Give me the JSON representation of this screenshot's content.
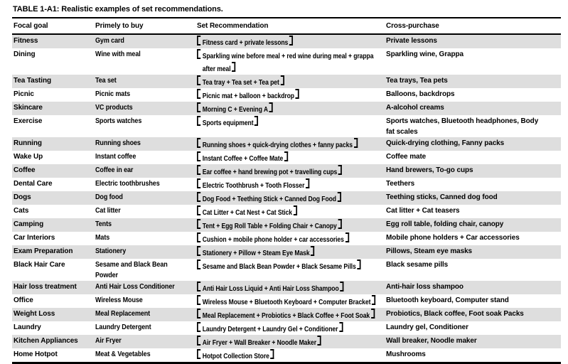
{
  "caption": "TABLE 1-A1: Realistic examples of set recommendations.",
  "colors": {
    "row_shade": "#dedede",
    "border": "#000000",
    "text": "#000000",
    "background": "#ffffff"
  },
  "icons": {
    "set_bracket_left": "black-lenticular-left-bracket 【",
    "set_bracket_right": "black-lenticular-right-bracket 】"
  },
  "table": {
    "columns": [
      "Focal goal",
      "Primely to buy",
      "Set Recommendation",
      "Cross-purchase"
    ],
    "rows": [
      {
        "focal_goal": "Fitness",
        "primely_to_buy": "Gym card",
        "set_recommendation": "Fitness card + private lessons",
        "cross_purchase": "Private lessons"
      },
      {
        "focal_goal": "Dining",
        "primely_to_buy": "Wine with meal",
        "set_recommendation": "Sparkling wine before meal + red wine during meal + grappa after meal",
        "cross_purchase": "Sparkling wine, Grappa"
      },
      {
        "focal_goal": "Tea Tasting",
        "primely_to_buy": "Tea set",
        "set_recommendation": "Tea tray + Tea set + Tea pet",
        "cross_purchase": "Tea trays, Tea pets"
      },
      {
        "focal_goal": "Picnic",
        "primely_to_buy": "Picnic mats",
        "set_recommendation": "Picnic mat + balloon + backdrop",
        "cross_purchase": "Balloons, backdrops"
      },
      {
        "focal_goal": "Skincare",
        "primely_to_buy": "VC products",
        "set_recommendation": "Morning C + Evening A",
        "cross_purchase": "A-alcohol creams"
      },
      {
        "focal_goal": "Exercise",
        "primely_to_buy": "Sports watches",
        "set_recommendation": "Sports equipment",
        "cross_purchase": "Sports watches, Bluetooth headphones, Body fat scales"
      },
      {
        "focal_goal": "Running",
        "primely_to_buy": "Running shoes",
        "set_recommendation": "Running shoes + quick-drying clothes + fanny packs",
        "cross_purchase": "Quick-drying clothing, Fanny packs"
      },
      {
        "focal_goal": "Wake Up",
        "primely_to_buy": "Instant coffee",
        "set_recommendation": "Instant Coffee + Coffee Mate",
        "cross_purchase": "Coffee mate"
      },
      {
        "focal_goal": "Coffee",
        "primely_to_buy": "Coffee in ear",
        "set_recommendation": "Ear coffee + hand brewing pot + travelling cups",
        "cross_purchase": "Hand brewers, To-go cups"
      },
      {
        "focal_goal": "Dental Care",
        "primely_to_buy": "Electric toothbrushes",
        "set_recommendation": "Electric Toothbrush + Tooth Flosser",
        "cross_purchase": "Teethers"
      },
      {
        "focal_goal": "Dogs",
        "primely_to_buy": "Dog food",
        "set_recommendation": "Dog Food + Teething Stick + Canned Dog Food",
        "cross_purchase": "Teething sticks, Canned dog food"
      },
      {
        "focal_goal": "Cats",
        "primely_to_buy": "Cat litter",
        "set_recommendation": "Cat Litter + Cat Nest + Cat Stick",
        "cross_purchase": "Cat litter + Cat teasers"
      },
      {
        "focal_goal": "Camping",
        "primely_to_buy": "Tents",
        "set_recommendation": "Tent + Egg Roll Table + Folding Chair + Canopy",
        "cross_purchase": "Egg roll table, folding chair, canopy"
      },
      {
        "focal_goal": "Car Interiors",
        "primely_to_buy": "Mats",
        "set_recommendation": "Cushion + mobile phone holder + car accessories",
        "cross_purchase": "Mobile phone holders + Car accessories"
      },
      {
        "focal_goal": "Exam Preparation",
        "primely_to_buy": "Stationery",
        "set_recommendation": "Stationery + Pillow + Steam Eye Mask",
        "cross_purchase": "Pillows, Steam eye masks"
      },
      {
        "focal_goal": "Black Hair Care",
        "primely_to_buy": "Sesame and Black Bean Powder",
        "set_recommendation": "Sesame and Black Bean Powder + Black Sesame Pills",
        "cross_purchase": "Black sesame pills"
      },
      {
        "focal_goal": "Hair loss treatment",
        "primely_to_buy": "Anti Hair Loss Conditioner",
        "set_recommendation": "Anti Hair Loss Liquid + Anti Hair Loss Shampoo",
        "cross_purchase": "Anti-hair loss shampoo"
      },
      {
        "focal_goal": "Office",
        "primely_to_buy": "Wireless Mouse",
        "set_recommendation": "Wireless Mouse + Bluetooth Keyboard + Computer Bracket",
        "cross_purchase": "Bluetooth keyboard, Computer stand"
      },
      {
        "focal_goal": "Weight Loss",
        "primely_to_buy": "Meal Replacement",
        "set_recommendation": "Meal Replacement + Probiotics + Black Coffee + Foot Soak",
        "cross_purchase": "Probiotics, Black coffee, Foot soak Packs"
      },
      {
        "focal_goal": "Laundry",
        "primely_to_buy": "Laundry Detergent",
        "set_recommendation": "Laundry Detergent + Laundry Gel + Conditioner",
        "cross_purchase": "Laundry gel, Conditioner"
      },
      {
        "focal_goal": "Kitchen Appliances",
        "primely_to_buy": "Air Fryer",
        "set_recommendation": "Air Fryer + Wall Breaker + Noodle Maker",
        "cross_purchase": "Wall breaker, Noodle maker"
      },
      {
        "focal_goal": "Home Hotpot",
        "primely_to_buy": "Meat & Vegetables",
        "set_recommendation": "Hotpot Collection Store",
        "cross_purchase": "Mushrooms"
      }
    ]
  }
}
